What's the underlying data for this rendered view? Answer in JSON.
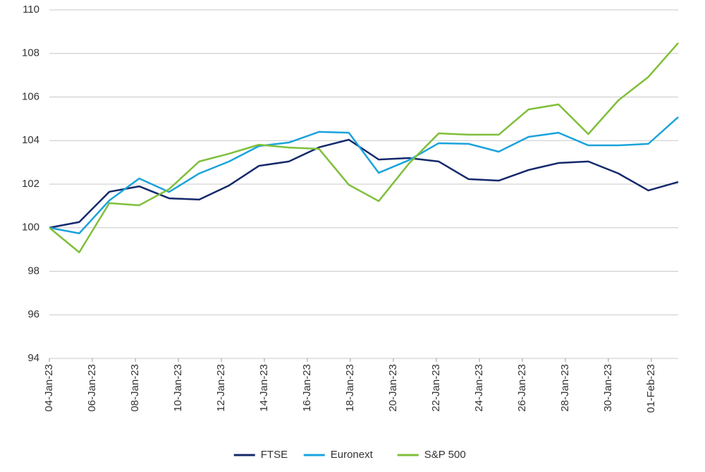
{
  "chart_data": {
    "type": "line",
    "x": [
      0,
      1.39,
      2.79,
      4.18,
      5.57,
      6.97,
      8.36,
      9.75,
      11.14,
      12.54,
      13.93,
      15.32,
      16.72,
      18.11,
      19.5,
      20.9,
      22.29,
      23.68,
      25.07,
      26.47,
      27.86,
      29.25
    ],
    "xlim": [
      0,
      29.25
    ],
    "xticks": [
      {
        "value": 0,
        "label": "04-Jan-23"
      },
      {
        "value": 2,
        "label": "06-Jan-23"
      },
      {
        "value": 4,
        "label": "08-Jan-23"
      },
      {
        "value": 6,
        "label": "10-Jan-23"
      },
      {
        "value": 8,
        "label": "12-Jan-23"
      },
      {
        "value": 10,
        "label": "14-Jan-23"
      },
      {
        "value": 12,
        "label": "16-Jan-23"
      },
      {
        "value": 14,
        "label": "18-Jan-23"
      },
      {
        "value": 16,
        "label": "20-Jan-23"
      },
      {
        "value": 18,
        "label": "22-Jan-23"
      },
      {
        "value": 20,
        "label": "24-Jan-23"
      },
      {
        "value": 22,
        "label": "26-Jan-23"
      },
      {
        "value": 24,
        "label": "28-Jan-23"
      },
      {
        "value": 26,
        "label": "30-Jan-23"
      },
      {
        "value": 28,
        "label": "01-Feb-23"
      }
    ],
    "ylim": [
      94,
      110
    ],
    "yticks": [
      94,
      96,
      98,
      100,
      102,
      104,
      106,
      108,
      110
    ],
    "grid": true,
    "legend": "bottom",
    "series": [
      {
        "name": "FTSE",
        "color": "#14296b",
        "values": [
          100,
          100.26,
          101.65,
          101.9,
          101.35,
          101.29,
          101.94,
          102.84,
          103.04,
          103.69,
          104.04,
          103.13,
          103.2,
          103.04,
          102.23,
          102.16,
          102.65,
          102.97,
          103.04,
          102.49,
          101.71,
          102.1
        ]
      },
      {
        "name": "Euronext",
        "color": "#1ba3dc",
        "values": [
          100,
          99.74,
          101.25,
          102.26,
          101.64,
          102.49,
          103.04,
          103.75,
          103.91,
          104.4,
          104.36,
          102.52,
          103.1,
          103.88,
          103.85,
          103.49,
          104.17,
          104.36,
          103.78,
          103.78,
          103.85,
          105.08
        ]
      },
      {
        "name": "S&P 500",
        "color": "#7fbf3a",
        "values": [
          100,
          98.87,
          101.13,
          101.03,
          101.77,
          103.04,
          103.4,
          103.81,
          103.68,
          103.62,
          101.97,
          101.22,
          102.94,
          104.33,
          104.27,
          104.27,
          105.43,
          105.66,
          104.3,
          105.85,
          106.92,
          108.48
        ]
      }
    ]
  }
}
